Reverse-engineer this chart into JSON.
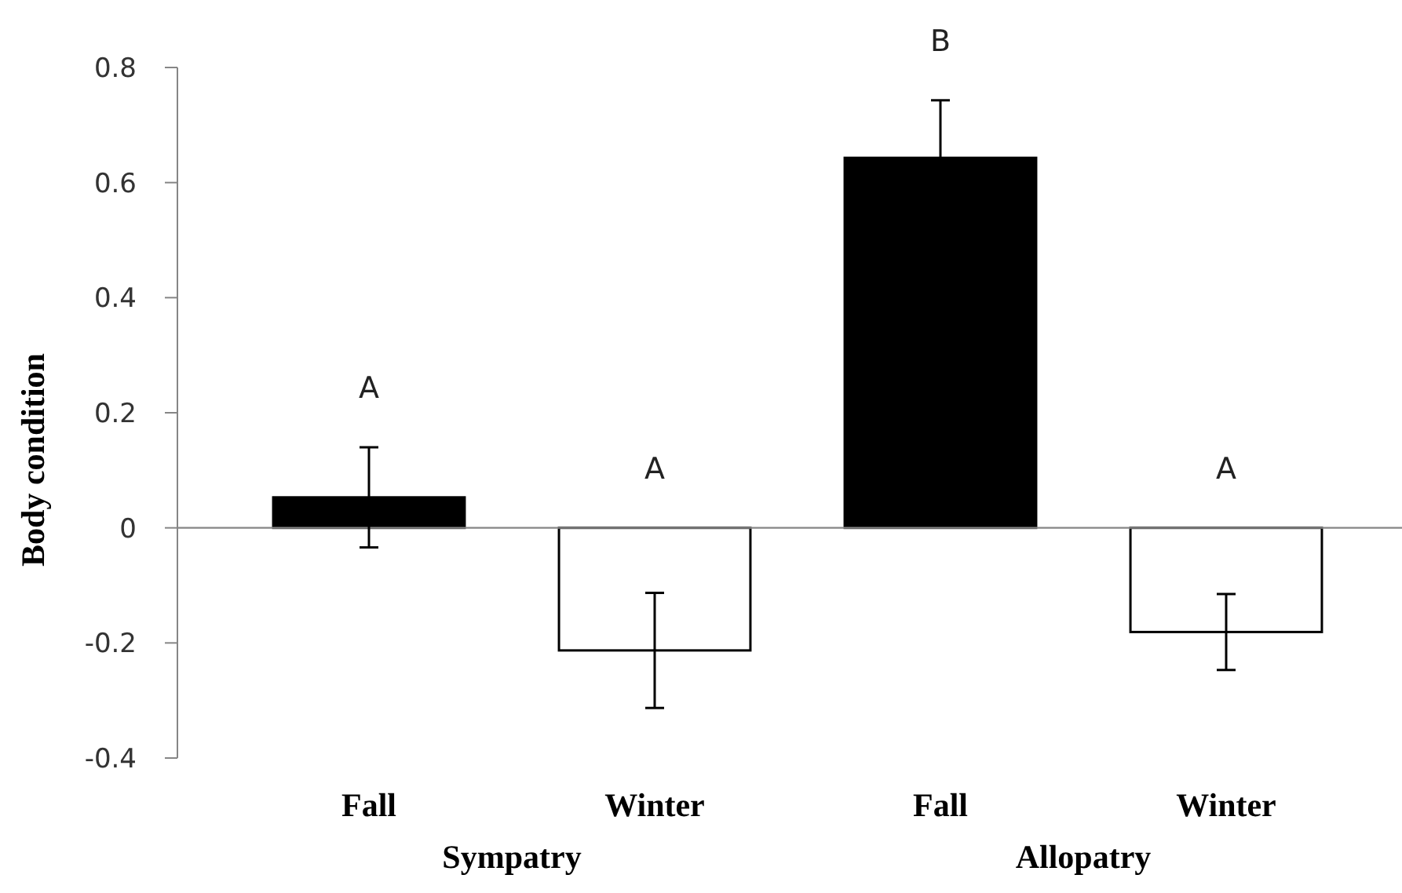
{
  "chart_data": {
    "type": "bar",
    "ylabel": "Body condition",
    "categories": [
      "Fall",
      "Winter",
      "Fall",
      "Winter"
    ],
    "values": [
      0.053,
      -0.213,
      0.643,
      -0.181
    ],
    "colors": [
      "#000000",
      "#ffffff",
      "#000000",
      "#ffffff"
    ],
    "errors": [
      0.087,
      0.1,
      0.1,
      0.066
    ],
    "ylim": [
      -0.4,
      0.8
    ],
    "yticks": [
      -0.4,
      -0.2,
      0,
      0.2,
      0.4,
      0.6,
      0.8
    ],
    "annotations": [
      "A",
      "A",
      "B",
      "A",
      "Sympatry",
      "Allopatry"
    ]
  }
}
